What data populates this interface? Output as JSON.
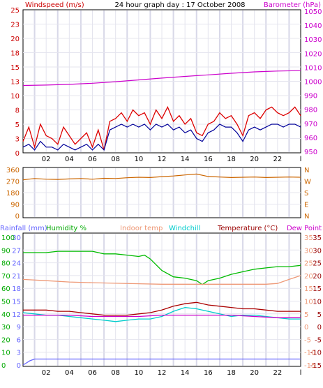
{
  "chart_data": [
    {
      "type": "line",
      "panel": "wind-baro",
      "title": "24 hour graph day : 17 October 2008",
      "left_label": "Windspeed (m/s)",
      "right_label": "Barometer (hPa)",
      "x_ticks": [
        "02",
        "04",
        "06",
        "08",
        "10",
        "12",
        "14",
        "16",
        "18",
        "20",
        "22",
        "l"
      ],
      "x_range_hours": [
        0,
        24
      ],
      "grid": true,
      "left_axis": {
        "ticks": [
          "0",
          "3",
          "5",
          "8",
          "10",
          "13",
          "15",
          "18",
          "20",
          "23",
          "25"
        ],
        "range": [
          0,
          25
        ]
      },
      "right_axis": {
        "ticks": [
          "950",
          "960",
          "970",
          "980",
          "990",
          "1000",
          "1010",
          "1020",
          "1030",
          "1040",
          "1050"
        ],
        "range": [
          949,
          1051
        ]
      },
      "series": [
        {
          "name": "Windspeed",
          "axis": "left",
          "color": "#dd0000",
          "x": [
            0,
            0.5,
            1,
            1.5,
            2,
            2.5,
            3,
            3.5,
            4,
            4.5,
            5,
            5.5,
            6,
            6.5,
            7,
            7.5,
            8,
            8.5,
            9,
            9.5,
            10,
            10.5,
            11,
            11.5,
            12,
            12.5,
            13,
            13.5,
            14,
            14.5,
            15,
            15.5,
            16,
            16.5,
            17,
            17.5,
            18,
            18.5,
            19,
            19.5,
            20,
            20.5,
            21,
            21.5,
            22,
            22.5,
            23,
            23.5,
            24
          ],
          "y": [
            2,
            4.5,
            1,
            5,
            3,
            2.5,
            1.5,
            4.5,
            3,
            1.5,
            2.5,
            3.5,
            1,
            4,
            0.5,
            5.5,
            6,
            7,
            5.5,
            7.5,
            6.5,
            7,
            5,
            7.5,
            6,
            8,
            5.5,
            6.5,
            5,
            6,
            3.5,
            3,
            5,
            5.5,
            7,
            6,
            6.5,
            5,
            3,
            6.5,
            7,
            6,
            7.5,
            8,
            7,
            6.5,
            7,
            8,
            6.5
          ]
        },
        {
          "name": "Gust",
          "axis": "left",
          "color": "#000099",
          "x": [
            0,
            0.5,
            1,
            1.5,
            2,
            2.5,
            3,
            3.5,
            4,
            4.5,
            5,
            5.5,
            6,
            6.5,
            7,
            7.5,
            8,
            8.5,
            9,
            9.5,
            10,
            10.5,
            11,
            11.5,
            12,
            12.5,
            13,
            13.5,
            14,
            14.5,
            15,
            15.5,
            16,
            16.5,
            17,
            17.5,
            18,
            18.5,
            19,
            19.5,
            20,
            20.5,
            21,
            21.5,
            22,
            22.5,
            23,
            23.5,
            24
          ],
          "y": [
            1,
            1.5,
            0.5,
            2,
            1,
            1,
            0.5,
            1.5,
            1,
            0.5,
            1,
            1.5,
            0.5,
            1.5,
            0.5,
            4,
            4.5,
            5,
            4.5,
            5,
            4.5,
            5,
            4,
            5,
            4.5,
            5,
            4,
            4.5,
            3.5,
            4,
            2.5,
            2,
            3.5,
            4,
            5,
            4.5,
            4.5,
            3.5,
            2,
            4,
            4.5,
            4,
            4.5,
            5,
            5,
            4.5,
            5,
            5,
            4.5
          ]
        },
        {
          "name": "Barometer",
          "axis": "right",
          "color": "#cc00cc",
          "x": [
            0,
            2,
            4,
            6,
            8,
            10,
            12,
            14,
            16,
            18,
            20,
            22,
            24
          ],
          "y": [
            997,
            997.3,
            997.8,
            998.6,
            999.7,
            1001,
            1002.3,
            1003.5,
            1004.6,
            1005.7,
            1006.7,
            1007.3,
            1007.6
          ]
        }
      ]
    },
    {
      "type": "line",
      "panel": "wind-direction",
      "left_axis": {
        "ticks": [
          "360",
          "270",
          "180",
          "90",
          "0"
        ],
        "range": [
          0,
          360
        ]
      },
      "right_axis": {
        "ticks": [
          "N",
          "W",
          "S",
          "E",
          "N"
        ]
      },
      "x_range_hours": [
        0,
        24
      ],
      "grid": true,
      "series": [
        {
          "name": "Wind direction",
          "color": "#cc6600",
          "x": [
            0,
            1,
            2,
            3,
            4,
            5,
            6,
            7,
            8,
            9,
            10,
            11,
            12,
            13,
            14,
            15,
            16,
            17,
            18,
            19,
            20,
            21,
            22,
            23,
            24
          ],
          "y": [
            280,
            290,
            285,
            283,
            287,
            290,
            285,
            292,
            290,
            296,
            300,
            298,
            305,
            310,
            318,
            325,
            306,
            302,
            298,
            300,
            302,
            298,
            300,
            302,
            300
          ]
        }
      ]
    },
    {
      "type": "line",
      "panel": "temp-hum-rain",
      "labels": [
        "Rainfall (mm)",
        "Humidity %",
        "Indoor temp",
        "Windchill",
        "Temperature (°C)",
        "Dew Point"
      ],
      "x_ticks": [
        "02",
        "04",
        "06",
        "08",
        "10",
        "12",
        "14",
        "16",
        "18",
        "20",
        "22",
        "l"
      ],
      "x_range_hours": [
        0,
        24
      ],
      "grid": true,
      "rain_axis": {
        "ticks": [
          "30",
          "27",
          "24",
          "21",
          "18",
          "15",
          "12",
          "9",
          "6",
          "3",
          "0"
        ],
        "range": [
          0,
          30
        ]
      },
      "humidity_axis": {
        "ticks": [
          "100",
          "90",
          "80",
          "70",
          "60",
          "50",
          "40",
          "30",
          "20",
          "10",
          "0"
        ],
        "range": [
          0,
          100
        ]
      },
      "temp_axis": {
        "ticks": [
          "35",
          "30",
          "25",
          "20",
          "15",
          "10",
          "5",
          "0",
          "-5",
          "-10",
          "-15"
        ],
        "range": [
          -15,
          35
        ]
      },
      "series": [
        {
          "name": "Humidity",
          "axis": "humidity",
          "color": "#00bb00",
          "x": [
            0,
            1,
            2,
            3,
            4,
            5,
            6,
            7,
            8,
            9,
            10,
            10.5,
            11,
            12,
            13,
            14,
            15,
            15.5,
            16,
            17,
            18,
            19,
            20,
            21,
            22,
            23,
            24
          ],
          "y": [
            88,
            88,
            88,
            89,
            89,
            89,
            89,
            87,
            87,
            86,
            85,
            86,
            83,
            74,
            69,
            68,
            66,
            63,
            66,
            68,
            71,
            73,
            75,
            76,
            77,
            77,
            78
          ]
        },
        {
          "name": "Indoor temp",
          "axis": "temp",
          "color": "#ee9977",
          "x": [
            0,
            2,
            4,
            6,
            8,
            10,
            12,
            14,
            16,
            18,
            20,
            21,
            22,
            23,
            24
          ],
          "y": [
            18.5,
            18,
            17.5,
            17.2,
            17,
            16.8,
            16.6,
            16.6,
            16.6,
            16.6,
            16.6,
            16.6,
            16.9,
            18.5,
            20
          ]
        },
        {
          "name": "Windchill",
          "axis": "temp",
          "color": "#00cccc",
          "x": [
            0,
            1,
            2,
            3,
            4,
            5,
            6,
            7,
            8,
            9,
            10,
            11,
            12,
            13,
            14,
            15,
            16,
            17,
            18,
            19,
            20,
            21,
            22,
            23,
            24
          ],
          "y": [
            5.5,
            5,
            4.5,
            4.5,
            4,
            3.5,
            3,
            2.5,
            2,
            2.5,
            3,
            3,
            4,
            6,
            7.5,
            7,
            6,
            5,
            4,
            4.5,
            4.5,
            4,
            3.5,
            3,
            3
          ]
        },
        {
          "name": "Temperature",
          "axis": "temp",
          "color": "#aa0000",
          "x": [
            0,
            1,
            2,
            3,
            4,
            5,
            6,
            7,
            8,
            9,
            10,
            11,
            12,
            13,
            14,
            15,
            16,
            17,
            18,
            19,
            20,
            21,
            22,
            23,
            24
          ],
          "y": [
            6.5,
            6.5,
            6.5,
            6,
            6,
            5.5,
            5,
            4.5,
            4.5,
            4.5,
            5,
            5.5,
            6.5,
            8,
            9,
            9.5,
            8.5,
            8,
            7.5,
            7,
            7,
            6.5,
            6,
            6,
            6
          ]
        },
        {
          "name": "Dew Point",
          "axis": "temp",
          "color": "#cc00cc",
          "x": [
            0,
            2,
            4,
            6,
            8,
            10,
            12,
            14,
            16,
            18,
            20,
            22,
            24
          ],
          "y": [
            4.5,
            4.5,
            4.5,
            4,
            4,
            4,
            4.5,
            4.5,
            4.5,
            4.5,
            4,
            3.5,
            3.5
          ]
        },
        {
          "name": "Rainfall",
          "axis": "rain",
          "color": "#6666ff",
          "x": [
            0,
            0.3,
            0.6,
            1,
            24
          ],
          "y": [
            0,
            0.5,
            1,
            1.4,
            1.4
          ]
        }
      ]
    }
  ],
  "colors": {
    "windspeed_label": "#cc0000",
    "barometer_label": "#cc00cc",
    "rainfall_label": "#6666ff",
    "humidity_label": "#00aa00",
    "indoor_label": "#ee9977",
    "windchill_label": "#00cccc",
    "temperature_label": "#990000",
    "dewpoint_label": "#cc00cc"
  }
}
